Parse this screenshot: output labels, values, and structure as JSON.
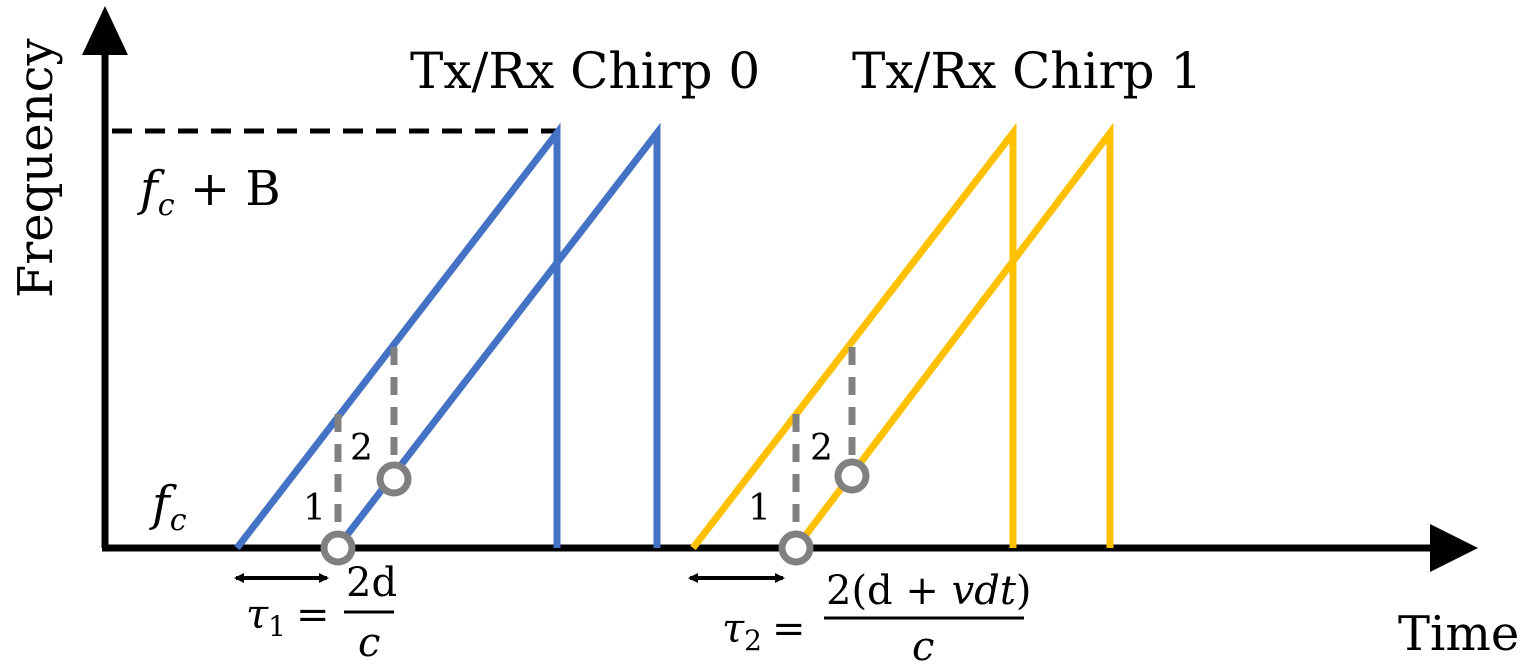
{
  "titles": {
    "chirp0": "Tx/Rx Chirp 0",
    "chirp1": "Tx/Rx Chirp 1"
  },
  "axes": {
    "y_label": "Frequency",
    "x_label": "Time"
  },
  "levels": {
    "top_base": "f",
    "top_sub": "c",
    "top_rest": " + B",
    "bottom_base": "f",
    "bottom_sub": "c"
  },
  "markers": {
    "chirp0_point1": "1",
    "chirp0_point2": "2",
    "chirp1_point1": "1",
    "chirp1_point2": "2"
  },
  "delays": {
    "tau1_symbol": "τ",
    "tau1_sub": "1",
    "tau1_eq": "=",
    "tau1_num": "2d",
    "tau1_den": "c",
    "tau2_symbol": "τ",
    "tau2_sub": "2",
    "tau2_eq": "=",
    "tau2_num_pre": "2(d + ",
    "tau2_num_var": "vdt",
    "tau2_num_post": ")",
    "tau2_den": "c"
  },
  "colors": {
    "chirp0": "#4472C4",
    "chirp1": "#FFC000",
    "dashed_marker": "#808080",
    "axis": "#000000"
  }
}
